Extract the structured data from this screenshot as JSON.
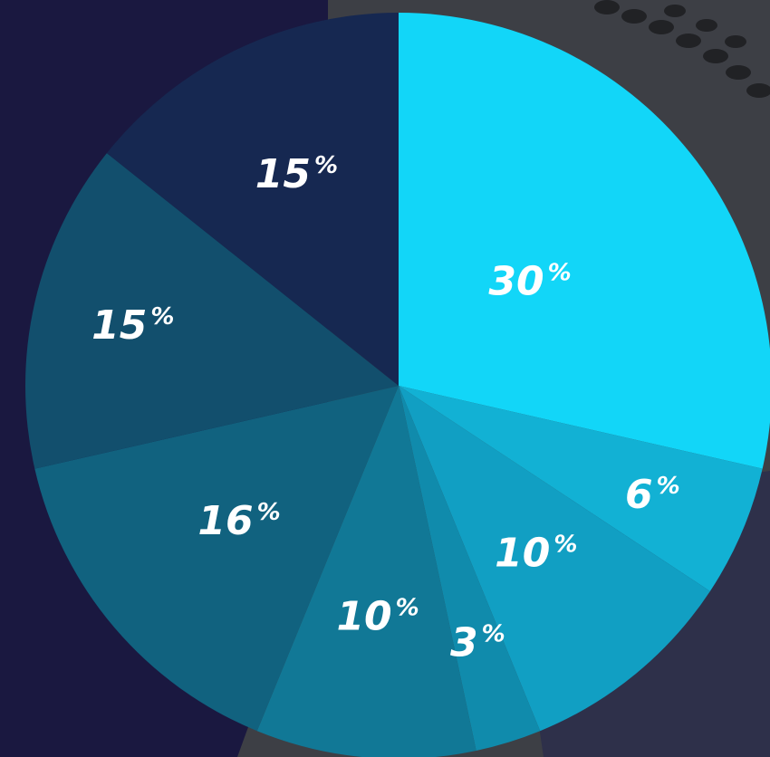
{
  "colors": {
    "background": "#1a1840",
    "photo_track": "#3d3f45",
    "photo_dark": "#2c2f4a"
  },
  "chart_data": {
    "type": "pie",
    "title": "",
    "start_angle_deg": 0,
    "direction": "clockwise",
    "slices": [
      {
        "value": 30,
        "label": "30",
        "unit": "%",
        "color": "#12d6f8"
      },
      {
        "value": 6,
        "label": "6",
        "unit": "%",
        "color": "#12b1d4"
      },
      {
        "value": 10,
        "label": "10",
        "unit": "%",
        "color": "#119fc3"
      },
      {
        "value": 3,
        "label": "3",
        "unit": "%",
        "color": "#108bac"
      },
      {
        "value": 10,
        "label": "10",
        "unit": "%",
        "color": "#117896"
      },
      {
        "value": 16,
        "label": "16",
        "unit": "%",
        "color": "#11627f"
      },
      {
        "value": 15,
        "label": "15",
        "unit": "%",
        "color": "#124f6d"
      },
      {
        "value": 15,
        "label": "15",
        "unit": "%",
        "color": "#162851"
      }
    ]
  }
}
